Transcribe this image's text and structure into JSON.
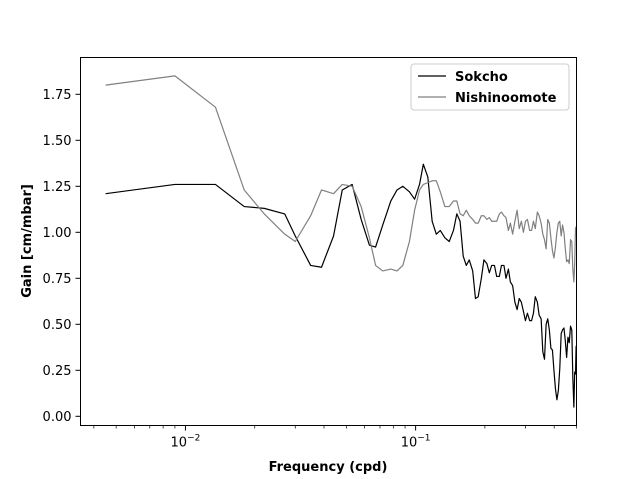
{
  "chart_data": {
    "type": "line",
    "xlabel": "Frequency (cpd)",
    "ylabel": "Gain [cm/mbar]",
    "xscale": "log",
    "xlim": [
      0.0035,
      0.5
    ],
    "ylim": [
      -0.05,
      1.95
    ],
    "x_major_ticks": [
      {
        "value": 0.01,
        "base": "10",
        "exp": "−2"
      },
      {
        "value": 0.1,
        "base": "10",
        "exp": "−1"
      }
    ],
    "y_ticks": [
      0.0,
      0.25,
      0.5,
      0.75,
      1.0,
      1.25,
      1.5,
      1.75
    ],
    "y_tick_labels": [
      "0.00",
      "0.25",
      "0.50",
      "0.75",
      "1.00",
      "1.25",
      "1.50",
      "1.75"
    ],
    "legend_position": "top-right",
    "series": [
      {
        "name": "Sokcho",
        "color": "#000000",
        "points": [
          [
            0.0045,
            1.21
          ],
          [
            0.009,
            1.26
          ],
          [
            0.0135,
            1.26
          ],
          [
            0.018,
            1.14
          ],
          [
            0.022,
            1.13
          ],
          [
            0.027,
            1.1
          ],
          [
            0.03,
            0.98
          ],
          [
            0.035,
            0.82
          ],
          [
            0.039,
            0.81
          ],
          [
            0.044,
            0.98
          ],
          [
            0.048,
            1.23
          ],
          [
            0.053,
            1.26
          ],
          [
            0.058,
            1.07
          ],
          [
            0.063,
            0.93
          ],
          [
            0.067,
            0.92
          ],
          [
            0.072,
            1.04
          ],
          [
            0.078,
            1.17
          ],
          [
            0.083,
            1.23
          ],
          [
            0.088,
            1.25
          ],
          [
            0.094,
            1.22
          ],
          [
            0.099,
            1.18
          ],
          [
            0.104,
            1.26
          ],
          [
            0.108,
            1.37
          ],
          [
            0.113,
            1.3
          ],
          [
            0.118,
            1.06
          ],
          [
            0.123,
            0.99
          ],
          [
            0.128,
            1.01
          ],
          [
            0.134,
            0.97
          ],
          [
            0.14,
            0.95
          ],
          [
            0.146,
            1.01
          ],
          [
            0.151,
            1.1
          ],
          [
            0.156,
            1.06
          ],
          [
            0.161,
            0.87
          ],
          [
            0.166,
            0.82
          ],
          [
            0.171,
            0.85
          ],
          [
            0.177,
            0.79
          ],
          [
            0.182,
            0.64
          ],
          [
            0.187,
            0.65
          ],
          [
            0.193,
            0.75
          ],
          [
            0.198,
            0.85
          ],
          [
            0.204,
            0.83
          ],
          [
            0.209,
            0.78
          ],
          [
            0.214,
            0.82
          ],
          [
            0.22,
            0.82
          ],
          [
            0.225,
            0.76
          ],
          [
            0.231,
            0.76
          ],
          [
            0.236,
            0.82
          ],
          [
            0.242,
            0.82
          ],
          [
            0.247,
            0.75
          ],
          [
            0.253,
            0.8
          ],
          [
            0.258,
            0.73
          ],
          [
            0.264,
            0.71
          ],
          [
            0.27,
            0.62
          ],
          [
            0.276,
            0.58
          ],
          [
            0.282,
            0.64
          ],
          [
            0.288,
            0.62
          ],
          [
            0.294,
            0.57
          ],
          [
            0.3,
            0.52
          ],
          [
            0.306,
            0.56
          ],
          [
            0.313,
            0.52
          ],
          [
            0.319,
            0.52
          ],
          [
            0.325,
            0.56
          ],
          [
            0.331,
            0.65
          ],
          [
            0.338,
            0.62
          ],
          [
            0.344,
            0.55
          ],
          [
            0.351,
            0.53
          ],
          [
            0.357,
            0.35
          ],
          [
            0.363,
            0.31
          ],
          [
            0.369,
            0.5
          ],
          [
            0.375,
            0.53
          ],
          [
            0.381,
            0.47
          ],
          [
            0.387,
            0.37
          ],
          [
            0.393,
            0.36
          ],
          [
            0.399,
            0.25
          ],
          [
            0.405,
            0.15
          ],
          [
            0.411,
            0.09
          ],
          [
            0.417,
            0.14
          ],
          [
            0.423,
            0.26
          ],
          [
            0.429,
            0.45
          ],
          [
            0.435,
            0.47
          ],
          [
            0.441,
            0.48
          ],
          [
            0.447,
            0.41
          ],
          [
            0.453,
            0.32
          ],
          [
            0.459,
            0.43
          ],
          [
            0.465,
            0.4
          ],
          [
            0.471,
            0.49
          ],
          [
            0.477,
            0.47
          ],
          [
            0.482,
            0.21
          ],
          [
            0.487,
            0.05
          ],
          [
            0.491,
            0.24
          ],
          [
            0.495,
            0.23
          ],
          [
            0.498,
            0.38
          ],
          [
            0.5,
            0.32
          ]
        ]
      },
      {
        "name": "Nishinoomote",
        "color": "#808080",
        "points": [
          [
            0.0045,
            1.8
          ],
          [
            0.009,
            1.85
          ],
          [
            0.0135,
            1.68
          ],
          [
            0.018,
            1.23
          ],
          [
            0.022,
            1.1
          ],
          [
            0.027,
            0.99
          ],
          [
            0.03,
            0.95
          ],
          [
            0.035,
            1.09
          ],
          [
            0.039,
            1.23
          ],
          [
            0.044,
            1.21
          ],
          [
            0.048,
            1.26
          ],
          [
            0.053,
            1.25
          ],
          [
            0.058,
            1.14
          ],
          [
            0.063,
            0.97
          ],
          [
            0.067,
            0.82
          ],
          [
            0.072,
            0.79
          ],
          [
            0.078,
            0.8
          ],
          [
            0.083,
            0.79
          ],
          [
            0.088,
            0.82
          ],
          [
            0.094,
            0.95
          ],
          [
            0.099,
            1.12
          ],
          [
            0.104,
            1.23
          ],
          [
            0.108,
            1.26
          ],
          [
            0.113,
            1.27
          ],
          [
            0.118,
            1.28
          ],
          [
            0.123,
            1.28
          ],
          [
            0.128,
            1.22
          ],
          [
            0.134,
            1.14
          ],
          [
            0.14,
            1.14
          ],
          [
            0.146,
            1.17
          ],
          [
            0.151,
            1.17
          ],
          [
            0.156,
            1.1
          ],
          [
            0.161,
            1.09
          ],
          [
            0.166,
            1.12
          ],
          [
            0.171,
            1.09
          ],
          [
            0.177,
            1.07
          ],
          [
            0.182,
            1.05
          ],
          [
            0.187,
            1.05
          ],
          [
            0.193,
            1.09
          ],
          [
            0.198,
            1.09
          ],
          [
            0.204,
            1.07
          ],
          [
            0.209,
            1.08
          ],
          [
            0.214,
            1.06
          ],
          [
            0.22,
            1.06
          ],
          [
            0.225,
            1.06
          ],
          [
            0.231,
            1.1
          ],
          [
            0.236,
            1.11
          ],
          [
            0.242,
            1.09
          ],
          [
            0.247,
            1.08
          ],
          [
            0.253,
            1.01
          ],
          [
            0.258,
            1.05
          ],
          [
            0.264,
            0.99
          ],
          [
            0.27,
            1.06
          ],
          [
            0.276,
            1.12
          ],
          [
            0.282,
            1.02
          ],
          [
            0.288,
            1.06
          ],
          [
            0.294,
            1.0
          ],
          [
            0.3,
            1.06
          ],
          [
            0.306,
            1.07
          ],
          [
            0.313,
            1.01
          ],
          [
            0.319,
            1.01
          ],
          [
            0.325,
            1.06
          ],
          [
            0.331,
            1.02
          ],
          [
            0.338,
            1.11
          ],
          [
            0.344,
            1.09
          ],
          [
            0.351,
            1.05
          ],
          [
            0.357,
            0.99
          ],
          [
            0.363,
            0.96
          ],
          [
            0.369,
            0.91
          ],
          [
            0.375,
            1.07
          ],
          [
            0.381,
            1.05
          ],
          [
            0.387,
            0.97
          ],
          [
            0.393,
            0.9
          ],
          [
            0.399,
            0.86
          ],
          [
            0.405,
            0.92
          ],
          [
            0.411,
            1.0
          ],
          [
            0.417,
            1.05
          ],
          [
            0.423,
            1.06
          ],
          [
            0.429,
            0.98
          ],
          [
            0.435,
            1.04
          ],
          [
            0.441,
            1.0
          ],
          [
            0.447,
            0.91
          ],
          [
            0.453,
            0.84
          ],
          [
            0.459,
            0.85
          ],
          [
            0.465,
            0.83
          ],
          [
            0.471,
            0.96
          ],
          [
            0.477,
            0.95
          ],
          [
            0.482,
            0.8
          ],
          [
            0.487,
            0.73
          ],
          [
            0.491,
            0.83
          ],
          [
            0.495,
            1.02
          ],
          [
            0.498,
            1.03
          ],
          [
            0.5,
            0.98
          ]
        ]
      }
    ]
  }
}
